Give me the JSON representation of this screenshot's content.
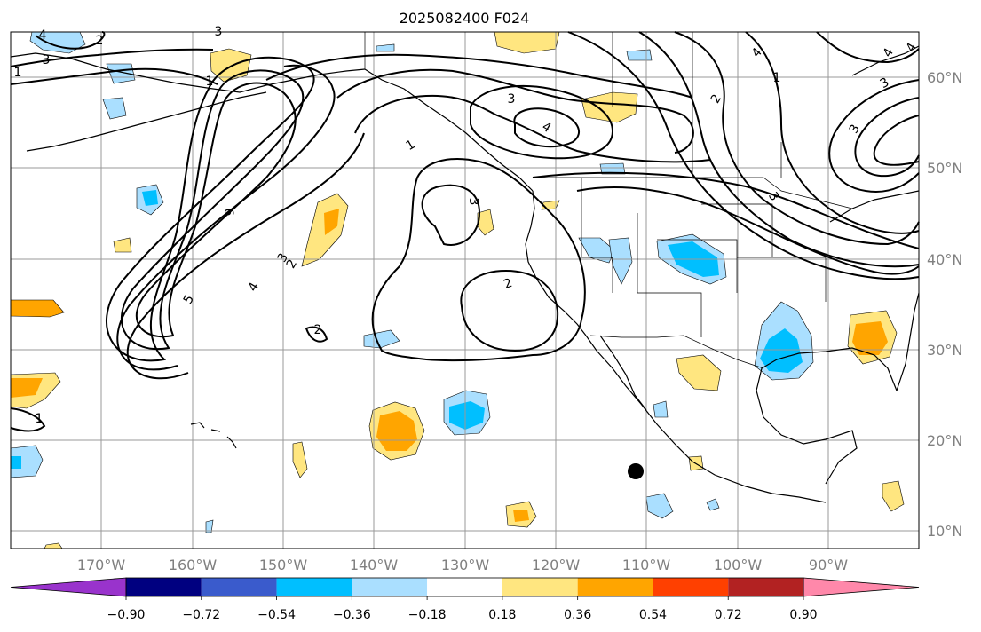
{
  "title": "2025082400 F024",
  "map": {
    "lat_labels": [
      "60°N",
      "50°N",
      "40°N",
      "30°N",
      "20°N",
      "10°N"
    ],
    "lon_labels": [
      "170°W",
      "160°W",
      "150°W",
      "140°W",
      "130°W",
      "120°W",
      "110°W",
      "100°W",
      "90°W"
    ],
    "contour_labels": [
      "6",
      "5",
      "4",
      "3",
      "2",
      "2",
      "1",
      "1",
      "4",
      "3",
      "2",
      "3",
      "1",
      "3",
      "4",
      "2",
      "1",
      "3",
      "4",
      "3",
      "3",
      "4",
      "4",
      "3",
      "2",
      "1"
    ],
    "gridline_color": "#999999",
    "coastline_color": "#000000",
    "marker": "storm-center-dot"
  },
  "colorbar": {
    "tick_labels": [
      "−0.90",
      "−0.72",
      "−0.54",
      "−0.36",
      "−0.18",
      "0.18",
      "0.36",
      "0.54",
      "0.72",
      "0.90"
    ],
    "colors": [
      "#9933cc",
      "#000080",
      "#3a5bcc",
      "#00bfff",
      "#aadfff",
      "#ffffff",
      "#ffe680",
      "#ffa500",
      "#ff4000",
      "#b22222",
      "#ff88aa"
    ]
  }
}
